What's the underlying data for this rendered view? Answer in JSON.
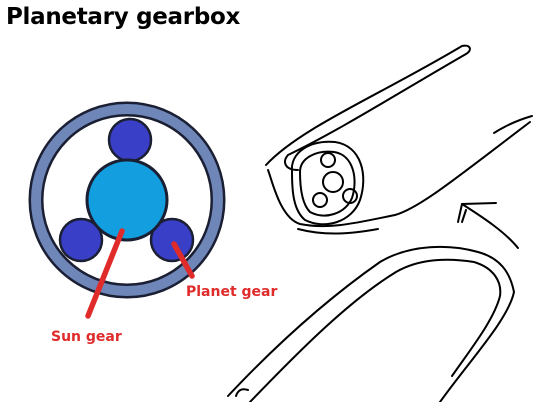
{
  "title": "Planetary gearbox",
  "labels": {
    "planet_gear": "Planet gear",
    "sun_gear": "Sun gear"
  },
  "colors": {
    "ring_border": "#1b1f33",
    "ring_fill": "#6f86b8",
    "sun_gear": "#139fdf",
    "planet_gear": "#3a3fc8",
    "label_red": "#e02b2b",
    "sketch_line": "#000000"
  }
}
